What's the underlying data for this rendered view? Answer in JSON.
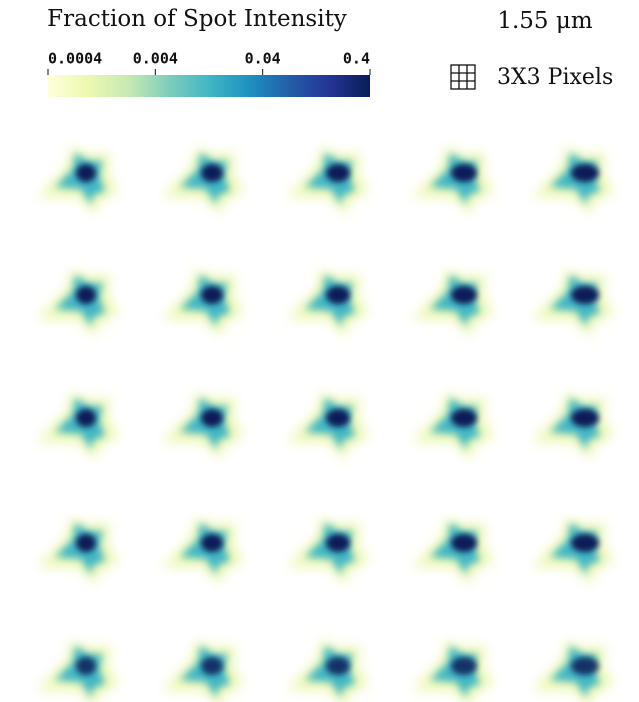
{
  "colorbar": {
    "title": "Fraction of Spot Intensity",
    "range": [
      0.0004,
      0.4
    ],
    "log": true,
    "ticks": [
      0.0004,
      0.004,
      0.04,
      0.4
    ],
    "colors": [
      "#ffffd9",
      "#edf8b1",
      "#c7e9b4",
      "#7fcdbb",
      "#41b6c4",
      "#1d91c0",
      "#225ea8",
      "#253494",
      "#081d58"
    ]
  },
  "scale_label": "1.55 μm",
  "pixel_legend": "3X3 Pixels"
}
